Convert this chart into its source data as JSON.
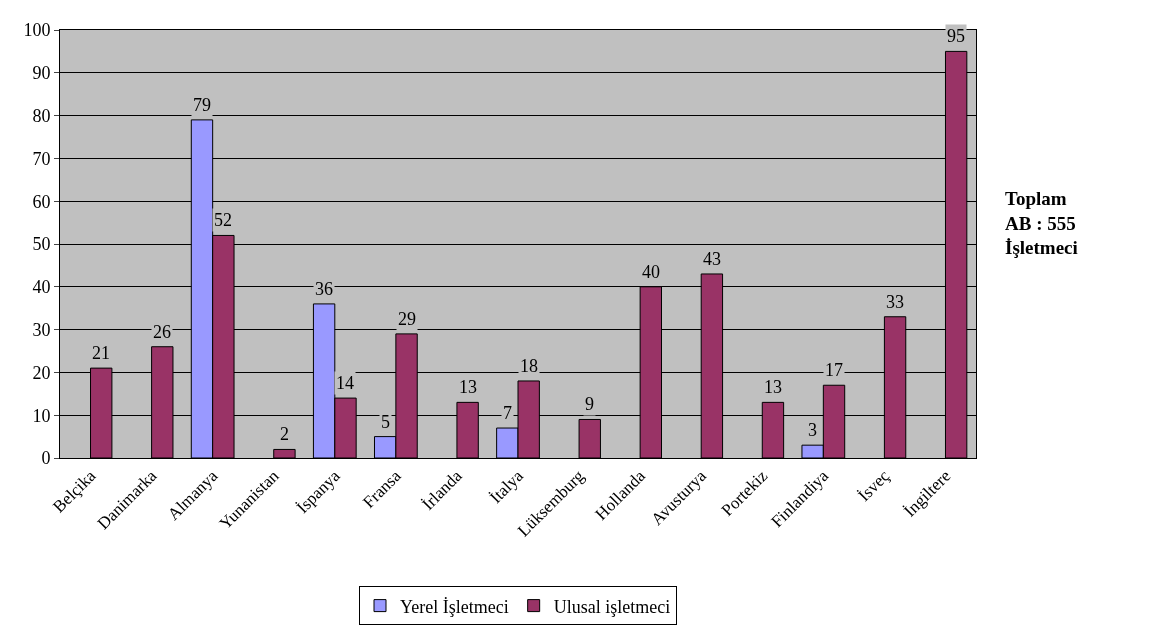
{
  "chart_data": {
    "type": "bar",
    "categories": [
      "Belçika",
      "Danimarka",
      "Almanya",
      "Yunanistan",
      "İspanya",
      "Fransa",
      "İrlanda",
      "İtalya",
      "Lüksemburg",
      "Hollanda",
      "Avusturya",
      "Portekiz",
      "Finlandiya",
      "İsveç",
      "İngiltere"
    ],
    "series": [
      {
        "name": "Yerel İşletmeci",
        "color": "#9999ff",
        "values": [
          null,
          null,
          79,
          null,
          36,
          5,
          null,
          7,
          null,
          null,
          null,
          null,
          3,
          null,
          null
        ]
      },
      {
        "name": "Ulusal işletmeci",
        "color": "#993366",
        "values": [
          21,
          26,
          52,
          2,
          14,
          29,
          13,
          18,
          9,
          40,
          43,
          13,
          17,
          33,
          95
        ]
      }
    ],
    "ylim": [
      0,
      100
    ],
    "yticks": [
      0,
      10,
      20,
      30,
      40,
      50,
      60,
      70,
      80,
      90,
      100
    ],
    "grid": "y",
    "legend": "bottom",
    "data_labels": true,
    "annotations": [
      "Toplam\nAB : 555\nİşletmeci"
    ]
  }
}
